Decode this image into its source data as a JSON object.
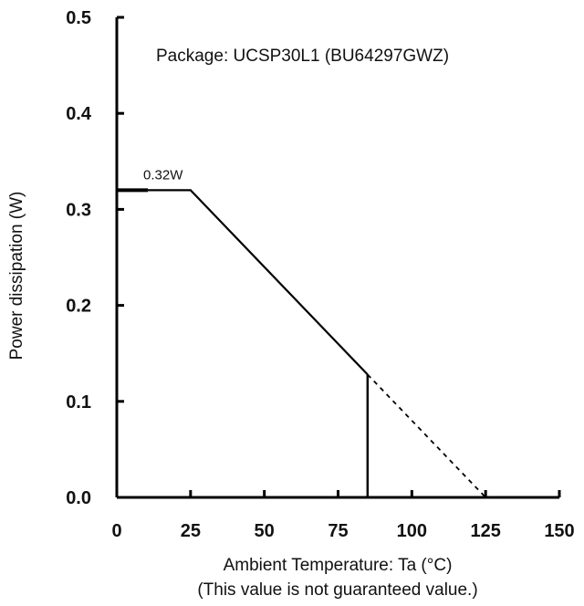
{
  "chart_data": {
    "type": "line",
    "title": "",
    "xlabel": "Ambient Temperature: Ta (°C)",
    "xlabel_note": "(This value is not guaranteed value.)",
    "ylabel": "Power dissipation (W)",
    "xlim": [
      0,
      150
    ],
    "ylim": [
      0,
      0.5
    ],
    "x_ticks": [
      0,
      25,
      50,
      75,
      100,
      125,
      150
    ],
    "y_ticks": [
      0.0,
      0.1,
      0.2,
      0.3,
      0.4,
      0.5
    ],
    "x_tick_labels": [
      "0",
      "25",
      "50",
      "75",
      "100",
      "125",
      "150"
    ],
    "y_tick_labels": [
      "0.0",
      "0.1",
      "0.2",
      "0.3",
      "0.4",
      "0.5"
    ],
    "grid": false,
    "series": [
      {
        "style": "solid",
        "x": [
          0,
          25,
          85
        ],
        "y": [
          0.32,
          0.32,
          0.128
        ]
      },
      {
        "style": "dashed",
        "x": [
          85,
          125
        ],
        "y": [
          0.128,
          0
        ]
      },
      {
        "style": "solid-drop",
        "x": [
          85,
          85
        ],
        "y": [
          0.128,
          0
        ]
      }
    ],
    "annotations": [
      {
        "text": "Package: UCSP30L1 (BU64297GWZ)"
      },
      {
        "text": "0.32W",
        "x": 0,
        "y": 0.32
      }
    ]
  }
}
